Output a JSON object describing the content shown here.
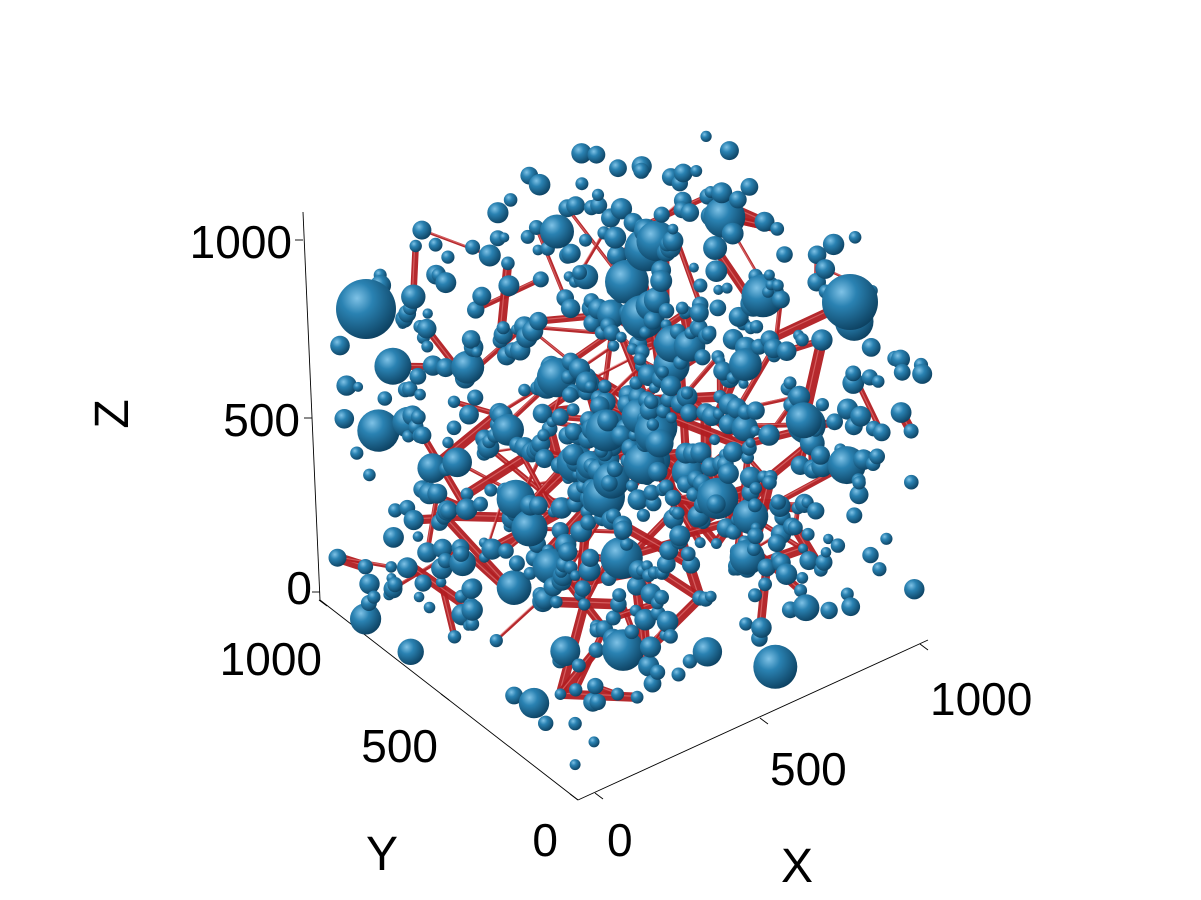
{
  "chart_data": {
    "type": "3d-network",
    "xlabel": "X",
    "ylabel": "Y",
    "zlabel": "Z",
    "xlim": [
      0,
      1000
    ],
    "ylim": [
      0,
      1000
    ],
    "zlim": [
      0,
      1000
    ],
    "x_ticks": [
      "0",
      "500",
      "1000"
    ],
    "y_ticks": [
      "0",
      "500",
      "1000"
    ],
    "z_ticks": [
      "0",
      "500",
      "1000"
    ],
    "grid": false,
    "node_color": "#1f6e96",
    "edge_color": "#b21e22",
    "background": "#ffffff"
  }
}
